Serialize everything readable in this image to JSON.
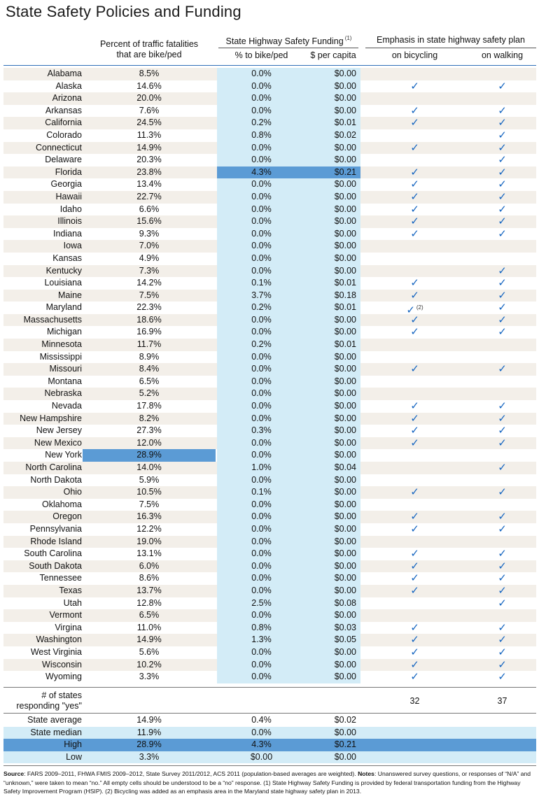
{
  "title": "State Safety Policies and Funding",
  "headers": {
    "pct_fatal_line1": "Percent of traffic fatalities",
    "pct_fatal_line2": "that are bike/ped",
    "funding_group": "State Highway Safety Funding",
    "funding_note": "(1)",
    "pct_bikeped": "% to bike/ped",
    "per_capita": "$ per capita",
    "emphasis_group": "Emphasis in state highway safety plan",
    "on_bicycling": "on bicycling",
    "on_walking": "on walking"
  },
  "check_symbol": "✓",
  "colors": {
    "light_blue": "#d3ecf7",
    "beige": "#f3efe9",
    "highlight": "#5b9bd5",
    "check": "#1565c0"
  },
  "rows": [
    {
      "state": "Alabama",
      "pct": "8.5%",
      "bikeped": "0.0%",
      "percap": "$0.00",
      "bike": "",
      "walk": ""
    },
    {
      "state": "Alaska",
      "pct": "14.6%",
      "bikeped": "0.0%",
      "percap": "$0.00",
      "bike": "✓",
      "walk": "✓"
    },
    {
      "state": "Arizona",
      "pct": "20.0%",
      "bikeped": "0.0%",
      "percap": "$0.00",
      "bike": "",
      "walk": ""
    },
    {
      "state": "Arkansas",
      "pct": "7.6%",
      "bikeped": "0.0%",
      "percap": "$0.00",
      "bike": "✓",
      "walk": "✓"
    },
    {
      "state": "California",
      "pct": "24.5%",
      "bikeped": "0.2%",
      "percap": "$0.01",
      "bike": "✓",
      "walk": "✓"
    },
    {
      "state": "Colorado",
      "pct": "11.3%",
      "bikeped": "0.8%",
      "percap": "$0.02",
      "bike": "",
      "walk": "✓"
    },
    {
      "state": "Connecticut",
      "pct": "14.9%",
      "bikeped": "0.0%",
      "percap": "$0.00",
      "bike": "✓",
      "walk": "✓"
    },
    {
      "state": "Delaware",
      "pct": "20.3%",
      "bikeped": "0.0%",
      "percap": "$0.00",
      "bike": "",
      "walk": "✓"
    },
    {
      "state": "Florida",
      "pct": "23.8%",
      "bikeped": "4.3%",
      "percap": "$0.21",
      "bike": "✓",
      "walk": "✓"
    },
    {
      "state": "Georgia",
      "pct": "13.4%",
      "bikeped": "0.0%",
      "percap": "$0.00",
      "bike": "✓",
      "walk": "✓"
    },
    {
      "state": "Hawaii",
      "pct": "22.7%",
      "bikeped": "0.0%",
      "percap": "$0.00",
      "bike": "✓",
      "walk": "✓"
    },
    {
      "state": "Idaho",
      "pct": "6.6%",
      "bikeped": "0.0%",
      "percap": "$0.00",
      "bike": "✓",
      "walk": "✓"
    },
    {
      "state": "Illinois",
      "pct": "15.6%",
      "bikeped": "0.0%",
      "percap": "$0.00",
      "bike": "✓",
      "walk": "✓"
    },
    {
      "state": "Indiana",
      "pct": "9.3%",
      "bikeped": "0.0%",
      "percap": "$0.00",
      "bike": "✓",
      "walk": "✓"
    },
    {
      "state": "Iowa",
      "pct": "7.0%",
      "bikeped": "0.0%",
      "percap": "$0.00",
      "bike": "",
      "walk": ""
    },
    {
      "state": "Kansas",
      "pct": "4.9%",
      "bikeped": "0.0%",
      "percap": "$0.00",
      "bike": "",
      "walk": ""
    },
    {
      "state": "Kentucky",
      "pct": "7.3%",
      "bikeped": "0.0%",
      "percap": "$0.00",
      "bike": "",
      "walk": "✓"
    },
    {
      "state": "Louisiana",
      "pct": "14.2%",
      "bikeped": "0.1%",
      "percap": "$0.01",
      "bike": "✓",
      "walk": "✓"
    },
    {
      "state": "Maine",
      "pct": "7.5%",
      "bikeped": "3.7%",
      "percap": "$0.18",
      "bike": "✓",
      "walk": "✓"
    },
    {
      "state": "Maryland",
      "pct": "22.3%",
      "bikeped": "0.2%",
      "percap": "$0.01",
      "bike": "✓",
      "walk": "✓",
      "bike_note": "(2)"
    },
    {
      "state": "Massachusetts",
      "pct": "18.6%",
      "bikeped": "0.0%",
      "percap": "$0.00",
      "bike": "✓",
      "walk": "✓"
    },
    {
      "state": "Michigan",
      "pct": "16.9%",
      "bikeped": "0.0%",
      "percap": "$0.00",
      "bike": "✓",
      "walk": "✓"
    },
    {
      "state": "Minnesota",
      "pct": "11.7%",
      "bikeped": "0.2%",
      "percap": "$0.01",
      "bike": "",
      "walk": ""
    },
    {
      "state": "Mississippi",
      "pct": "8.9%",
      "bikeped": "0.0%",
      "percap": "$0.00",
      "bike": "",
      "walk": ""
    },
    {
      "state": "Missouri",
      "pct": "8.4%",
      "bikeped": "0.0%",
      "percap": "$0.00",
      "bike": "✓",
      "walk": "✓"
    },
    {
      "state": "Montana",
      "pct": "6.5%",
      "bikeped": "0.0%",
      "percap": "$0.00",
      "bike": "",
      "walk": ""
    },
    {
      "state": "Nebraska",
      "pct": "5.2%",
      "bikeped": "0.0%",
      "percap": "$0.00",
      "bike": "",
      "walk": ""
    },
    {
      "state": "Nevada",
      "pct": "17.8%",
      "bikeped": "0.0%",
      "percap": "$0.00",
      "bike": "✓",
      "walk": "✓"
    },
    {
      "state": "New Hampshire",
      "pct": "8.2%",
      "bikeped": "0.0%",
      "percap": "$0.00",
      "bike": "✓",
      "walk": "✓"
    },
    {
      "state": "New Jersey",
      "pct": "27.3%",
      "bikeped": "0.3%",
      "percap": "$0.00",
      "bike": "✓",
      "walk": "✓"
    },
    {
      "state": "New Mexico",
      "pct": "12.0%",
      "bikeped": "0.0%",
      "percap": "$0.00",
      "bike": "✓",
      "walk": "✓"
    },
    {
      "state": "New York",
      "pct": "28.9%",
      "bikeped": "0.0%",
      "percap": "$0.00",
      "bike": "",
      "walk": ""
    },
    {
      "state": "North Carolina",
      "pct": "14.0%",
      "bikeped": "1.0%",
      "percap": "$0.04",
      "bike": "",
      "walk": "✓"
    },
    {
      "state": "North Dakota",
      "pct": "5.9%",
      "bikeped": "0.0%",
      "percap": "$0.00",
      "bike": "",
      "walk": ""
    },
    {
      "state": "Ohio",
      "pct": "10.5%",
      "bikeped": "0.1%",
      "percap": "$0.00",
      "bike": "✓",
      "walk": "✓"
    },
    {
      "state": "Oklahoma",
      "pct": "7.5%",
      "bikeped": "0.0%",
      "percap": "$0.00",
      "bike": "",
      "walk": ""
    },
    {
      "state": "Oregon",
      "pct": "16.3%",
      "bikeped": "0.0%",
      "percap": "$0.00",
      "bike": "✓",
      "walk": "✓"
    },
    {
      "state": "Pennsylvania",
      "pct": "12.2%",
      "bikeped": "0.0%",
      "percap": "$0.00",
      "bike": "✓",
      "walk": "✓"
    },
    {
      "state": "Rhode Island",
      "pct": "19.0%",
      "bikeped": "0.0%",
      "percap": "$0.00",
      "bike": "",
      "walk": ""
    },
    {
      "state": "South Carolina",
      "pct": "13.1%",
      "bikeped": "0.0%",
      "percap": "$0.00",
      "bike": "✓",
      "walk": "✓"
    },
    {
      "state": "South Dakota",
      "pct": "6.0%",
      "bikeped": "0.0%",
      "percap": "$0.00",
      "bike": "✓",
      "walk": "✓"
    },
    {
      "state": "Tennessee",
      "pct": "8.6%",
      "bikeped": "0.0%",
      "percap": "$0.00",
      "bike": "✓",
      "walk": "✓"
    },
    {
      "state": "Texas",
      "pct": "13.7%",
      "bikeped": "0.0%",
      "percap": "$0.00",
      "bike": "✓",
      "walk": "✓"
    },
    {
      "state": "Utah",
      "pct": "12.8%",
      "bikeped": "2.5%",
      "percap": "$0.08",
      "bike": "",
      "walk": "✓"
    },
    {
      "state": "Vermont",
      "pct": "6.5%",
      "bikeped": "0.0%",
      "percap": "$0.00",
      "bike": "",
      "walk": ""
    },
    {
      "state": "Virgina",
      "pct": "11.0%",
      "bikeped": "0.8%",
      "percap": "$0.03",
      "bike": "✓",
      "walk": "✓"
    },
    {
      "state": "Washington",
      "pct": "14.9%",
      "bikeped": "1.3%",
      "percap": "$0.05",
      "bike": "✓",
      "walk": "✓"
    },
    {
      "state": "West Virginia",
      "pct": "5.6%",
      "bikeped": "0.0%",
      "percap": "$0.00",
      "bike": "✓",
      "walk": "✓"
    },
    {
      "state": "Wisconsin",
      "pct": "10.2%",
      "bikeped": "0.0%",
      "percap": "$0.00",
      "bike": "✓",
      "walk": "✓"
    },
    {
      "state": "Wyoming",
      "pct": "3.3%",
      "bikeped": "0.0%",
      "percap": "$0.00",
      "bike": "✓",
      "walk": "✓"
    }
  ],
  "yes_count": {
    "label_line1": "# of states",
    "label_line2": "responding \"yes\"",
    "bike": "32",
    "walk": "37"
  },
  "stats": [
    {
      "label": "State average",
      "pct": "14.9%",
      "bikeped": "0.4%",
      "percap": "$0.02"
    },
    {
      "label": "State median",
      "pct": "11.9%",
      "bikeped": "0.0%",
      "percap": "$0.00"
    },
    {
      "label": "High",
      "pct": "28.9%",
      "bikeped": "4.3%",
      "percap": "$0.21"
    },
    {
      "label": "Low",
      "pct": "3.3%",
      "bikeped": "$0.00",
      "percap": "$0.00"
    }
  ],
  "source": {
    "source_label": "Source",
    "source_text": ": FARS 2009–2011, FHWA FMIS 2009–2012, State Survey 2011/2012, ACS 2011 (population-based averages are weighted). ",
    "notes_label": "Notes",
    "notes_text": ": Unanswered survey questions, or responses of “N/A” and “unknown,” were taken to mean “no.” All empty cells should be understood to be a “no” response. (1) State Highway Safety Funding is provided by federal transportation funding from the Highway Safety Improvement Program (HSIP). (2) Bicycling was added as an emphasis area in the Maryland state highway safety plan in 2013."
  }
}
